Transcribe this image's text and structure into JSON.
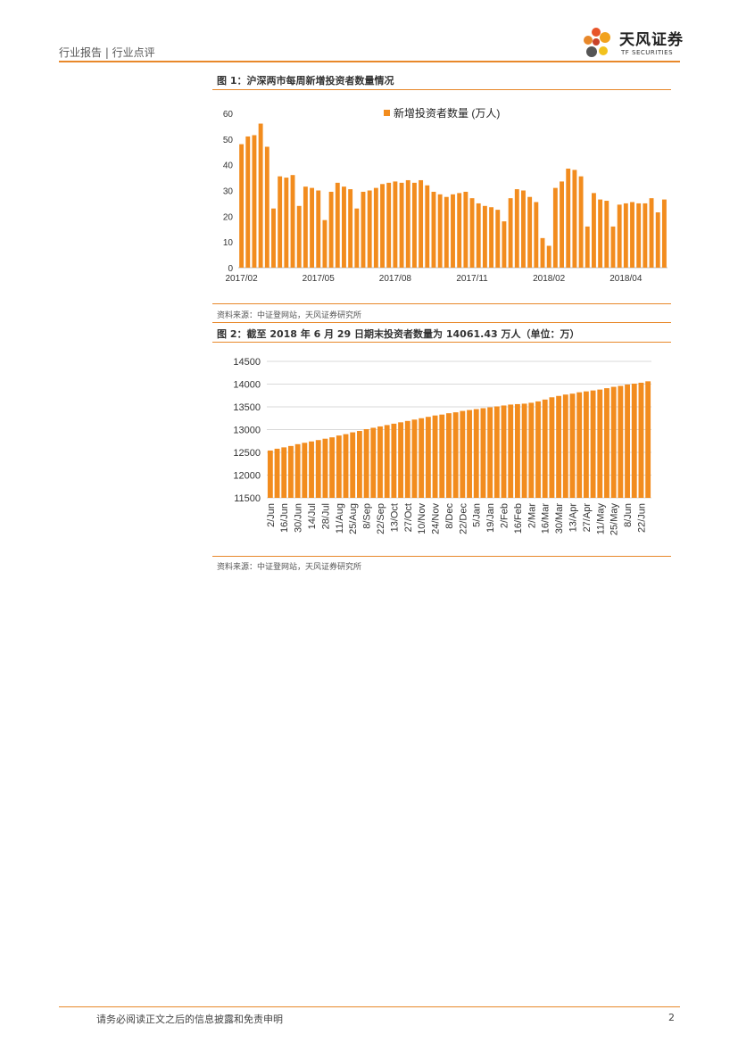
{
  "header": {
    "category": "行业报告 | 行业点评",
    "logo_cn": "天风证券",
    "logo_en": "TF SECURITIES",
    "accent": "#e8882a"
  },
  "figure1": {
    "title": "图 1：沪深两市每周新增投资者数量情况",
    "source": "资料来源：中证登网站，天风证券研究所"
  },
  "figure2": {
    "title": "图 2：截至 2018 年 6 月 29 日期末投资者数量为 14061.43 万人（单位：万）",
    "source": "资料来源：中证登网站，天风证券研究所"
  },
  "footer": {
    "disclaimer": "请务必阅读正文之后的信息披露和免责申明",
    "page": "2"
  },
  "chart_data": [
    {
      "type": "bar",
      "title": "",
      "legend": "新增投资者数量 (万人)",
      "legend_position": "top-right",
      "color": "#f28c1e",
      "ylim": [
        0,
        60
      ],
      "yticks": [
        0,
        10,
        20,
        30,
        40,
        50,
        60
      ],
      "xtick_labels": [
        "2017/02",
        "2017/05",
        "2017/08",
        "2017/11",
        "2018/02",
        "2018/04"
      ],
      "xtick_positions": [
        0,
        12,
        24,
        36,
        48,
        60
      ],
      "values": [
        48,
        51,
        51.5,
        56,
        47,
        23,
        35.5,
        35,
        36,
        24,
        31.5,
        31,
        30,
        18.5,
        29.5,
        33,
        31.5,
        30.5,
        23,
        29.5,
        30,
        31,
        32.5,
        33,
        33.5,
        33,
        34,
        33,
        34,
        32,
        29.5,
        28.5,
        27.5,
        28.5,
        29,
        29.5,
        27,
        25,
        24,
        23.5,
        22.5,
        18,
        27,
        30.5,
        30,
        27.5,
        25.5,
        11.5,
        8.5,
        31,
        33.5,
        38.5,
        38,
        35.5,
        16,
        29,
        26.5,
        26,
        16,
        24.5,
        25,
        25.5,
        25,
        25,
        27,
        21.5,
        26.5
      ]
    },
    {
      "type": "bar",
      "title": "",
      "color": "#f28c1e",
      "ylim": [
        11500,
        14500
      ],
      "yticks": [
        11500,
        12000,
        12500,
        13000,
        13500,
        14000,
        14500
      ],
      "grid": true,
      "categories": [
        "2/Jun",
        "9/Jun",
        "16/Jun",
        "23/Jun",
        "30/Jun",
        "7/Jul",
        "14/Jul",
        "21/Jul",
        "28/Jul",
        "4/Aug",
        "11/Aug",
        "18/Aug",
        "25/Aug",
        "1/Sep",
        "8/Sep",
        "15/Sep",
        "22/Sep",
        "29/Sep",
        "13/Oct",
        "20/Oct",
        "27/Oct",
        "3/Nov",
        "10/Nov",
        "17/Nov",
        "24/Nov",
        "1/Dec",
        "8/Dec",
        "15/Dec",
        "22/Dec",
        "29/Dec",
        "5/Jan",
        "12/Jan",
        "19/Jan",
        "26/Jan",
        "2/Feb",
        "9/Feb",
        "16/Feb",
        "23/Feb",
        "2/Mar",
        "9/Mar",
        "16/Mar",
        "23/Mar",
        "30/Mar",
        "6/Apr",
        "13/Apr",
        "20/Apr",
        "27/Apr",
        "4/May",
        "11/May",
        "18/May",
        "25/May",
        "1/Jun",
        "8/Jun",
        "15/Jun",
        "22/Jun",
        "29/Jun"
      ],
      "shown_labels": [
        "2/Jun",
        "16/Jun",
        "30/Jun",
        "14/Jul",
        "28/Jul",
        "11/Aug",
        "25/Aug",
        "8/Sep",
        "22/Sep",
        "13/Oct",
        "27/Oct",
        "10/Nov",
        "24/Nov",
        "8/Dec",
        "22/Dec",
        "5/Jan",
        "19/Jan",
        "2/Feb",
        "16/Feb",
        "2/Mar",
        "16/Mar",
        "30/Mar",
        "13/Apr",
        "27/Apr",
        "11/May",
        "25/May",
        "8/Jun",
        "22/Jun"
      ],
      "values": [
        12540,
        12580,
        12610,
        12640,
        12680,
        12710,
        12740,
        12770,
        12800,
        12830,
        12870,
        12900,
        12940,
        12970,
        13010,
        13040,
        13070,
        13100,
        13130,
        13160,
        13190,
        13220,
        13250,
        13280,
        13310,
        13330,
        13360,
        13380,
        13410,
        13430,
        13450,
        13470,
        13490,
        13510,
        13530,
        13550,
        13560,
        13570,
        13590,
        13620,
        13660,
        13710,
        13740,
        13770,
        13790,
        13820,
        13840,
        13860,
        13880,
        13910,
        13940,
        13960,
        13990,
        14010,
        14030,
        14061.43
      ]
    }
  ]
}
